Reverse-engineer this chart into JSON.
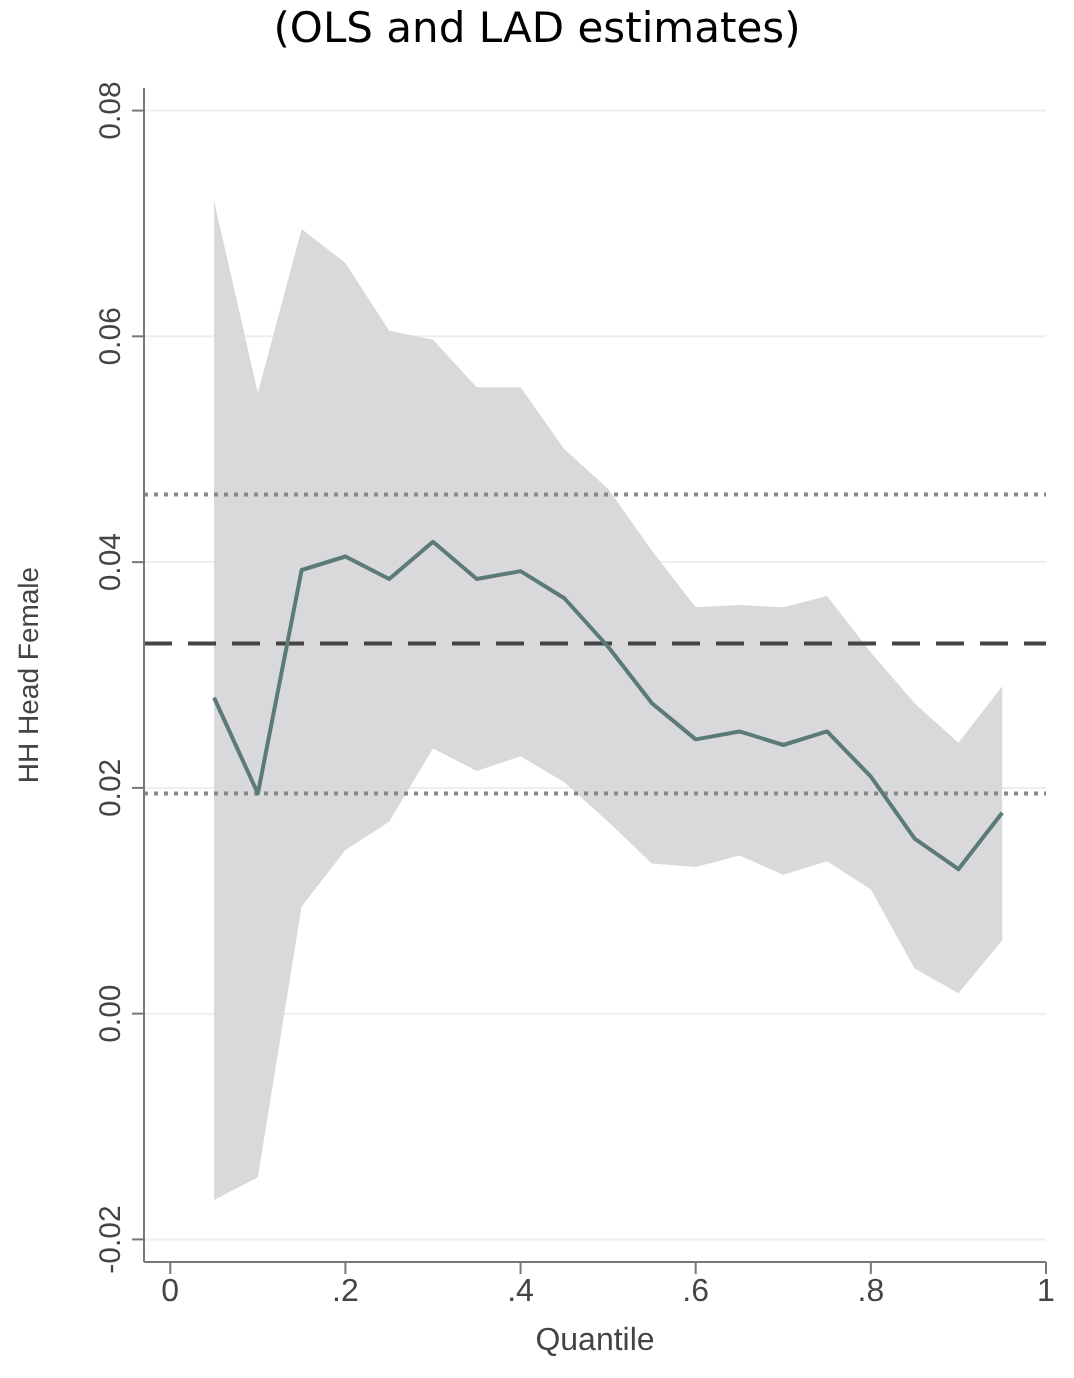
{
  "chart_data": {
    "type": "line",
    "title": "(OLS and LAD estimates)",
    "xlabel": "Quantile",
    "ylabel": "HH Head Female",
    "x": [
      0.05,
      0.1,
      0.15,
      0.2,
      0.25,
      0.3,
      0.35,
      0.4,
      0.45,
      0.5,
      0.55,
      0.6,
      0.65,
      0.7,
      0.75,
      0.8,
      0.85,
      0.9,
      0.95
    ],
    "series": [
      {
        "color": "#5b7a78",
        "values": [
          0.028,
          0.0195,
          0.0393,
          0.0405,
          0.0385,
          0.0418,
          0.0385,
          0.0392,
          0.0368,
          0.0325,
          0.0275,
          0.0243,
          0.025,
          0.0238,
          0.025,
          0.021,
          0.0155,
          0.0128,
          0.0178
        ],
        "lower": [
          -0.0165,
          -0.0145,
          0.0095,
          0.0145,
          0.017,
          0.0235,
          0.0215,
          0.0228,
          0.0205,
          0.017,
          0.0133,
          0.013,
          0.014,
          0.0123,
          0.0135,
          0.011,
          0.004,
          0.0018,
          0.0065
        ],
        "upper": [
          0.072,
          0.055,
          0.0695,
          0.0665,
          0.0605,
          0.0597,
          0.0555,
          0.0555,
          0.05,
          0.0465,
          0.041,
          0.036,
          0.0362,
          0.036,
          0.037,
          0.032,
          0.0275,
          0.024,
          0.029
        ]
      }
    ],
    "ref_lines": [
      {
        "axis": "y",
        "value": 0.0328,
        "line_style": "dashed",
        "color": "#444444"
      },
      {
        "axis": "y",
        "value": 0.046,
        "line_style": "dotted",
        "color": "#888888"
      },
      {
        "axis": "y",
        "value": 0.0195,
        "line_style": "dotted",
        "color": "#888888"
      }
    ],
    "xlim": [
      -0.03,
      1.0
    ],
    "xticks": [
      0,
      {
        "value": 0.2,
        "label": ".2"
      },
      {
        "value": 0.4,
        "label": ".4"
      },
      {
        "value": 0.6,
        "label": ".6"
      },
      {
        "value": 0.8,
        "label": ".8"
      },
      1
    ],
    "ylim": [
      -0.022,
      0.082
    ],
    "yticks": [
      {
        "value": -0.02,
        "label": "-0.02"
      },
      {
        "value": 0,
        "label": "0.00"
      },
      {
        "value": 0.02,
        "label": "0.02"
      },
      {
        "value": 0.04,
        "label": "0.04"
      },
      {
        "value": 0.06,
        "label": "0.06"
      },
      {
        "value": 0.08,
        "label": "0.08"
      }
    ],
    "grid": "y",
    "marker": "none",
    "line_style": "solid"
  }
}
